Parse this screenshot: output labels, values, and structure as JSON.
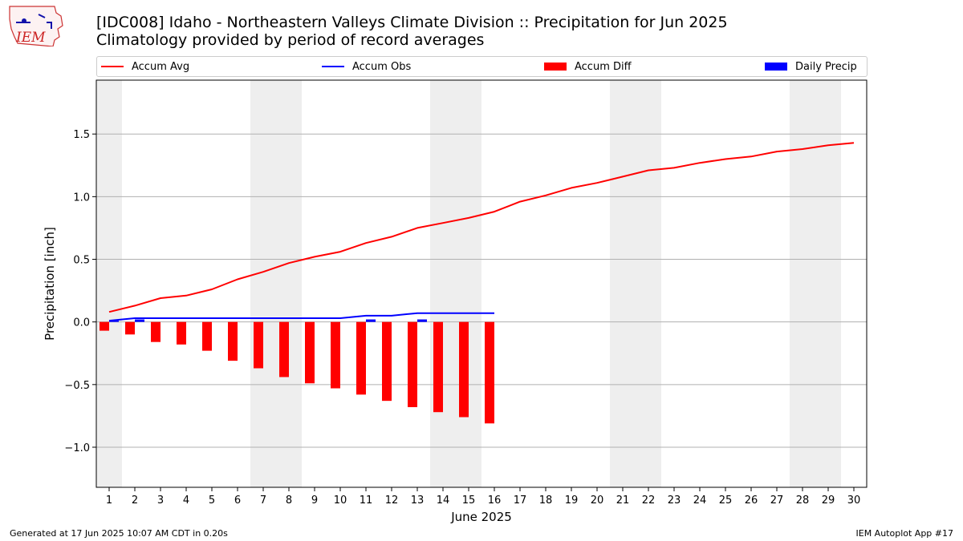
{
  "header": {
    "title": "[IDC008] Idaho - Northeastern Valleys Climate Division :: Precipitation for Jun 2025",
    "subtitle": "Climatology provided by period of record averages"
  },
  "logo": {
    "text": "IEM",
    "icon": "iem-iowa-map-logo"
  },
  "legend": {
    "placement": "top",
    "items": [
      {
        "label": "Accum Avg",
        "kind": "line",
        "color": "#ff0000"
      },
      {
        "label": "Accum Obs",
        "kind": "line",
        "color": "#0000ff"
      },
      {
        "label": "Accum Diff",
        "kind": "bar",
        "color": "#ff0000"
      },
      {
        "label": "Daily Precip",
        "kind": "bar",
        "color": "#0000ff"
      }
    ]
  },
  "footer": {
    "left": "Generated at 17 Jun 2025 10:07 AM CDT in 0.20s",
    "right": "IEM Autoplot App #17"
  },
  "chart_data": {
    "type": "bar",
    "xlabel": "June 2025",
    "ylabel": "Precipitation [inch]",
    "xlim": [
      0.5,
      30.5
    ],
    "ylim": [
      -1.32,
      1.93
    ],
    "grid": "horizontal",
    "x": [
      1,
      2,
      3,
      4,
      5,
      6,
      7,
      8,
      9,
      10,
      11,
      12,
      13,
      14,
      15,
      16,
      17,
      18,
      19,
      20,
      21,
      22,
      23,
      24,
      25,
      26,
      27,
      28,
      29,
      30
    ],
    "yticks": [
      -1.0,
      -0.5,
      0.0,
      0.5,
      1.0,
      1.5
    ],
    "ytick_labels": [
      "−1.0",
      "−0.5",
      "0.0",
      "0.5",
      "1.0",
      "1.5"
    ],
    "weekend_shading": [
      [
        0.5,
        1.5
      ],
      [
        6.5,
        8.5
      ],
      [
        13.5,
        15.5
      ],
      [
        20.5,
        22.5
      ],
      [
        27.5,
        29.5
      ]
    ],
    "shading_color": "#eeeeee",
    "series": [
      {
        "name": "Accum Avg",
        "type": "line",
        "color": "#ff0000",
        "x": [
          1,
          2,
          3,
          4,
          5,
          6,
          7,
          8,
          9,
          10,
          11,
          12,
          13,
          14,
          15,
          16,
          17,
          18,
          19,
          20,
          21,
          22,
          23,
          24,
          25,
          26,
          27,
          28,
          29,
          30
        ],
        "values": [
          0.08,
          0.13,
          0.19,
          0.21,
          0.26,
          0.34,
          0.4,
          0.47,
          0.52,
          0.56,
          0.63,
          0.68,
          0.75,
          0.79,
          0.83,
          0.88,
          0.96,
          1.01,
          1.07,
          1.11,
          1.16,
          1.21,
          1.23,
          1.27,
          1.3,
          1.32,
          1.36,
          1.38,
          1.41,
          1.43
        ]
      },
      {
        "name": "Accum Obs",
        "type": "line",
        "color": "#0000ff",
        "x": [
          1,
          2,
          3,
          4,
          5,
          6,
          7,
          8,
          9,
          10,
          11,
          12,
          13,
          14,
          15,
          16
        ],
        "values": [
          0.01,
          0.03,
          0.03,
          0.03,
          0.03,
          0.03,
          0.03,
          0.03,
          0.03,
          0.03,
          0.05,
          0.05,
          0.07,
          0.07,
          0.07,
          0.07
        ]
      },
      {
        "name": "Accum Diff",
        "type": "bar",
        "color": "#ff0000",
        "x": [
          1,
          2,
          3,
          4,
          5,
          6,
          7,
          8,
          9,
          10,
          11,
          12,
          13,
          14,
          15,
          16
        ],
        "values": [
          -0.07,
          -0.1,
          -0.16,
          -0.18,
          -0.23,
          -0.31,
          -0.37,
          -0.44,
          -0.49,
          -0.53,
          -0.58,
          -0.63,
          -0.68,
          -0.72,
          -0.76,
          -0.81
        ]
      },
      {
        "name": "Daily Precip",
        "type": "bar",
        "color": "#0000ff",
        "x": [
          1,
          2,
          3,
          4,
          5,
          6,
          7,
          8,
          9,
          10,
          11,
          12,
          13,
          14,
          15,
          16
        ],
        "values": [
          0.01,
          0.02,
          0,
          0,
          0,
          0,
          0,
          0,
          0,
          0,
          0.02,
          0,
          0.02,
          0,
          0,
          0
        ]
      }
    ]
  }
}
